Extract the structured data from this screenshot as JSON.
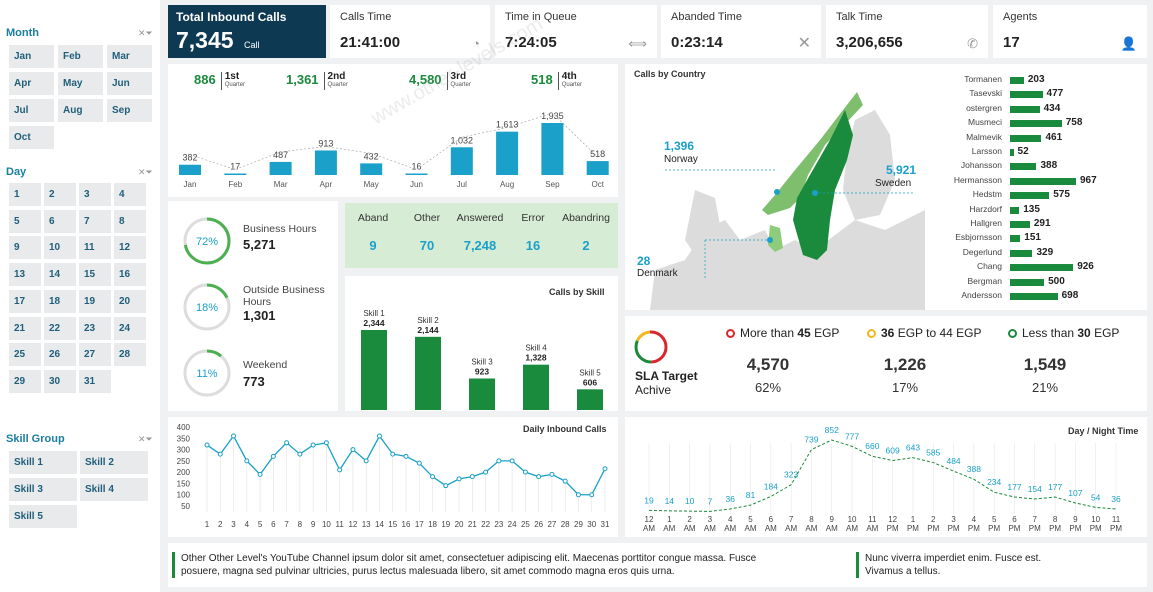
{
  "slicers": {
    "month": {
      "title": "Month",
      "items": [
        "Jan",
        "Feb",
        "Mar",
        "Apr",
        "May",
        "Jun",
        "Jul",
        "Aug",
        "Sep",
        "Oct"
      ]
    },
    "day": {
      "title": "Day",
      "items": [
        "1",
        "2",
        "3",
        "4",
        "5",
        "6",
        "7",
        "8",
        "9",
        "10",
        "11",
        "12",
        "13",
        "14",
        "15",
        "16",
        "17",
        "18",
        "19",
        "20",
        "21",
        "22",
        "23",
        "24",
        "25",
        "26",
        "27",
        "28",
        "29",
        "30",
        "31"
      ]
    },
    "skill_group": {
      "title": "Skill Group",
      "items": [
        "Skill 1",
        "Skill 2",
        "Skill 3",
        "Skill 4",
        "Skill 5"
      ]
    }
  },
  "kpis": {
    "total": {
      "label": "Total Inbound Calls",
      "value": "7,345",
      "unit": "Call"
    },
    "calls_time": {
      "label": "Calls Time",
      "value": "21:41:00"
    },
    "queue": {
      "label": "Time in Queue",
      "value": "7:24:05"
    },
    "abandoned": {
      "label": "Abanded Time",
      "value": "0:23:14"
    },
    "talk": {
      "label": "Talk Time",
      "value": "3,206,656"
    },
    "agents": {
      "label": "Agents",
      "value": "17"
    }
  },
  "quarters": [
    {
      "value": "886",
      "name": "1st",
      "sub": "Quarter"
    },
    {
      "value": "1,361",
      "name": "2nd",
      "sub": "Quarter"
    },
    {
      "value": "4,580",
      "name": "3rd",
      "sub": "Quarter"
    },
    {
      "value": "518",
      "name": "4th",
      "sub": "Quarter"
    }
  ],
  "rings": [
    {
      "pct": "72%",
      "fraction": 0.72,
      "label": "Business Hours",
      "value": "5,271"
    },
    {
      "pct": "18%",
      "fraction": 0.18,
      "label": "Outside Business Hours",
      "value": "1,301"
    },
    {
      "pct": "11%",
      "fraction": 0.11,
      "label": "Weekend",
      "value": "773"
    }
  ],
  "status_table": [
    {
      "header": "Aband",
      "value": "9"
    },
    {
      "header": "Other",
      "value": "70"
    },
    {
      "header": "Answered",
      "value": "7,248"
    },
    {
      "header": "Error",
      "value": "16"
    },
    {
      "header": "Abandring",
      "value": "2"
    }
  ],
  "map": {
    "title": "Calls by Country",
    "countries": [
      {
        "value": "1,396",
        "name": "Norway"
      },
      {
        "value": "5,921",
        "name": "Sweden"
      },
      {
        "value": "28",
        "name": "Denmark"
      }
    ]
  },
  "sla": {
    "title": "SLA Target",
    "subtitle": "Achive",
    "legend": [
      {
        "pre": "More than ",
        "bold": "45",
        "post": " EGP",
        "color": "#d9262c"
      },
      {
        "pre": "",
        "bold": "36",
        "post": " EGP to 44 EGP",
        "color": "#f2b71f"
      },
      {
        "pre": "Less than ",
        "bold": "30",
        "post": " EGP",
        "color": "#1a8a3c"
      }
    ],
    "values": [
      {
        "num": "4,570",
        "pct": "62%"
      },
      {
        "num": "1,226",
        "pct": "17%"
      },
      {
        "num": "1,549",
        "pct": "21%"
      }
    ]
  },
  "notes": [
    "Other Other Level's YouTube Channel ipsum dolor sit amet, consectetuer adipiscing elit. Maecenas porttitor congue massa. Fusce posuere, magna sed pulvinar ultricies, purus lectus malesuada libero, sit amet commodo magna eros quis urna.",
    "Nunc viverra imperdiet enim. Fusce est. Vivamus a tellus."
  ],
  "watermark": "www.other-levels.com",
  "colors": {
    "navy": "#0d3a52",
    "teal": "#1aa0c9",
    "green": "#1a8a3c",
    "light_green": "#d6ecd4"
  },
  "chart_data": [
    {
      "type": "bar",
      "categories": [
        "Jan",
        "Feb",
        "Mar",
        "Apr",
        "May",
        "Jun",
        "Jul",
        "Aug",
        "Sep",
        "Oct"
      ],
      "values": [
        382,
        17,
        487,
        913,
        432,
        16,
        1032,
        1613,
        1935,
        518
      ],
      "labels": [
        "382",
        "17",
        "487",
        "913",
        "432",
        "16",
        "1,032",
        "1,613",
        "1,935",
        "518"
      ]
    },
    {
      "type": "bar",
      "title": "Calls by Skill",
      "categories": [
        "Skill 1",
        "Skill 2",
        "Skill 3",
        "Skill 4",
        "Skill 5"
      ],
      "values": [
        2344,
        2144,
        923,
        1328,
        606
      ],
      "labels": [
        "2,344",
        "2,144",
        "923",
        "1,328",
        "606"
      ]
    },
    {
      "type": "bar",
      "orientation": "horizontal",
      "categories": [
        "Tormanen",
        "Tasevski",
        "ostergren",
        "Musmeci",
        "Malmevik",
        "Larsson",
        "Johansson",
        "Hermansson",
        "Hedstm",
        "Harzdorf",
        "Hallgren",
        "Esbjornsson",
        "Degerlund",
        "Chang",
        "Bergman",
        "Andersson"
      ],
      "values": [
        203,
        477,
        434,
        758,
        461,
        52,
        388,
        967,
        575,
        135,
        291,
        151,
        329,
        926,
        500,
        698
      ]
    },
    {
      "type": "line",
      "title": "Daily Inbound Calls",
      "x": [
        1,
        2,
        3,
        4,
        5,
        6,
        7,
        8,
        9,
        10,
        11,
        12,
        13,
        14,
        15,
        16,
        17,
        18,
        19,
        20,
        21,
        22,
        23,
        24,
        25,
        26,
        27,
        28,
        29,
        30,
        31
      ],
      "values": [
        320,
        280,
        360,
        250,
        190,
        270,
        330,
        280,
        320,
        330,
        210,
        300,
        250,
        360,
        280,
        270,
        240,
        180,
        140,
        170,
        180,
        200,
        250,
        250,
        200,
        180,
        190,
        160,
        100,
        100,
        215
      ],
      "yticks": [
        50,
        100,
        150,
        200,
        250,
        300,
        350,
        400
      ],
      "ylim": [
        50,
        400
      ]
    },
    {
      "type": "line",
      "title": "Day / Night Time",
      "x": [
        "12 AM",
        "1 AM",
        "2 AM",
        "3 AM",
        "4 AM",
        "5 AM",
        "6 AM",
        "7 AM",
        "8 AM",
        "9 AM",
        "10 AM",
        "11 AM",
        "12 PM",
        "1 PM",
        "2 PM",
        "3 PM",
        "4 PM",
        "5 PM",
        "6 PM",
        "7 PM",
        "8 PM",
        "9 PM",
        "10 PM",
        "11 PM"
      ],
      "values": [
        19,
        14,
        10,
        7,
        36,
        81,
        184,
        323,
        739,
        852,
        777,
        660,
        609,
        643,
        585,
        484,
        388,
        234,
        177,
        154,
        177,
        107,
        54,
        36
      ]
    }
  ]
}
